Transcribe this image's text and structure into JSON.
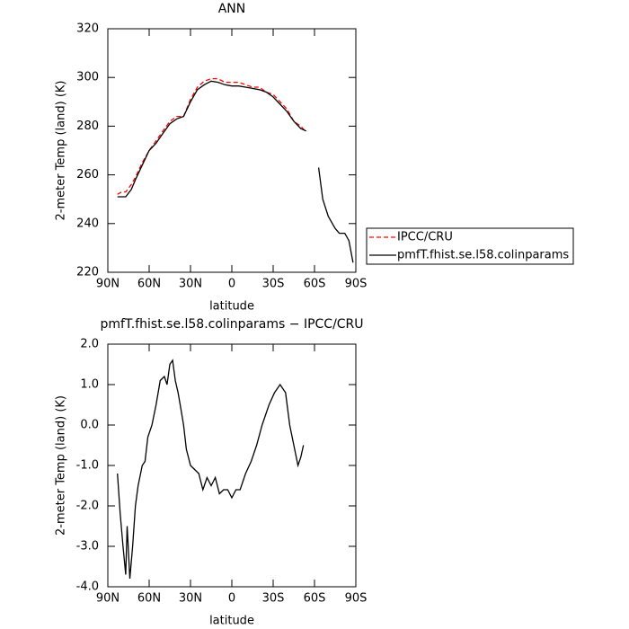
{
  "chart_data": [
    {
      "type": "line",
      "title": "ANN",
      "x_label": "latitude",
      "y_label": "2-meter Temp (land) (K)",
      "x": [
        83,
        80,
        77,
        73,
        70,
        65,
        60,
        55,
        50,
        45,
        40,
        35,
        30,
        25,
        20,
        15,
        10,
        5,
        0,
        -5,
        -10,
        -15,
        -20,
        -25,
        -30,
        -35,
        -40,
        -45,
        -50,
        -54,
        -58,
        -63,
        -66,
        -70,
        -73,
        -75,
        -78,
        -82,
        -85,
        -88
      ],
      "series": [
        {
          "name": "IPCC/CRU",
          "color": "#ff0000",
          "style": "dashed",
          "values": [
            252,
            253,
            253,
            256,
            259,
            265,
            270,
            274,
            278,
            282,
            284,
            284,
            291,
            296,
            298.5,
            299.5,
            299.5,
            298,
            298,
            298,
            297,
            296,
            296,
            294,
            293,
            290,
            287,
            282,
            280,
            277.5,
            null,
            null,
            null,
            null,
            null,
            null,
            null,
            null,
            null,
            null
          ]
        },
        {
          "name": "pmfT.fhist.se.l58.colinparams",
          "color": "#000000",
          "style": "solid",
          "values": [
            251,
            251,
            251,
            254,
            258,
            264,
            270,
            273,
            277,
            281,
            283,
            284,
            290,
            295,
            297,
            298.5,
            298,
            297,
            296.5,
            296.5,
            296,
            295.5,
            295,
            294,
            292,
            289,
            286,
            282,
            279,
            278,
            null,
            263,
            250,
            243,
            240,
            238,
            236,
            236,
            233,
            224
          ]
        }
      ],
      "xlim": [
        90,
        -90
      ],
      "xticks": [
        {
          "value": 90,
          "label": "90N"
        },
        {
          "value": 60,
          "label": "60N"
        },
        {
          "value": 30,
          "label": "30N"
        },
        0,
        {
          "value": -30,
          "label": "30S"
        },
        {
          "value": -60,
          "label": "60S"
        },
        {
          "value": -90,
          "label": "90S"
        }
      ],
      "ylim": [
        220,
        320
      ],
      "yticks": [
        220,
        240,
        260,
        280,
        300,
        320
      ],
      "legend": "right"
    },
    {
      "type": "line",
      "title": "pmfT.fhist.se.l58.colinparams − IPCC/CRU",
      "x_label": "latitude",
      "y_label": "2-meter Temp (land) (K)",
      "x": [
        83,
        81,
        79,
        77,
        76,
        74,
        72,
        70,
        68,
        65,
        63,
        61,
        58,
        55,
        52,
        49,
        47,
        45,
        43,
        41,
        39,
        37,
        35,
        33,
        30,
        27,
        24,
        21,
        18,
        15,
        12,
        9,
        6,
        3,
        0,
        -3,
        -6,
        -10,
        -14,
        -18,
        -22,
        -27,
        -31,
        -35,
        -39,
        -42,
        -45,
        -48,
        -50,
        -52
      ],
      "values": [
        -1.2,
        -2.2,
        -3.0,
        -3.7,
        -2.5,
        -3.8,
        -3.0,
        -2.0,
        -1.5,
        -1.0,
        -0.9,
        -0.3,
        0.0,
        0.5,
        1.1,
        1.2,
        1.0,
        1.5,
        1.6,
        1.1,
        0.8,
        0.4,
        0.0,
        -0.6,
        -1.0,
        -1.1,
        -1.2,
        -1.6,
        -1.3,
        -1.5,
        -1.3,
        -1.7,
        -1.6,
        -1.6,
        -1.8,
        -1.6,
        -1.6,
        -1.2,
        -0.9,
        -0.5,
        0.0,
        0.5,
        0.8,
        1.0,
        0.8,
        0.0,
        -0.5,
        -1.0,
        -0.8,
        -0.5
      ],
      "color": "#000000",
      "xlim": [
        90,
        -90
      ],
      "xticks": [
        {
          "value": 90,
          "label": "90N"
        },
        {
          "value": 60,
          "label": "60N"
        },
        {
          "value": 30,
          "label": "30N"
        },
        0,
        {
          "value": -30,
          "label": "30S"
        },
        {
          "value": -60,
          "label": "60S"
        },
        {
          "value": -90,
          "label": "90S"
        }
      ],
      "ylim": [
        -4,
        2
      ],
      "yticks": [
        {
          "value": -4,
          "label": "-4.0"
        },
        {
          "value": -3,
          "label": "-3.0"
        },
        {
          "value": -2,
          "label": "-2.0"
        },
        {
          "value": -1,
          "label": "-1.0"
        },
        {
          "value": 0,
          "label": "0.0"
        },
        {
          "value": 1,
          "label": "1.0"
        },
        {
          "value": 2,
          "label": "2.0"
        }
      ]
    }
  ]
}
